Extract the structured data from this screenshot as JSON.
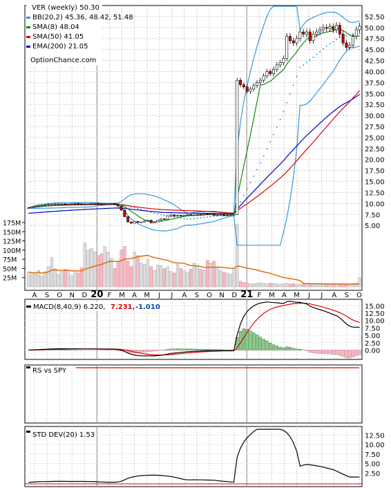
{
  "chart_data": [
    {
      "type": "candlestick",
      "ticker_label": "VER (weekly) 50.30",
      "watermark": "OptionChance.com",
      "legend_placement": "top-left",
      "legend": [
        {
          "label": "BB(20,2) 45.36, 48.42, 51.48",
          "color": "#3399dd"
        },
        {
          "label": "SMA(8) 48.04",
          "color": "#118811"
        },
        {
          "label": "SMA(50) 41.05",
          "color": "#dd0000"
        },
        {
          "label": "EMA(200) 21.05",
          "color": "#0000bb"
        }
      ],
      "ylim": [
        0,
        55
      ],
      "yticks": [
        "52.50",
        "50.00",
        "47.50",
        "45.00",
        "42.50",
        "40.00",
        "37.50",
        "35.00",
        "32.50",
        "30.00",
        "27.50",
        "25.00",
        "22.50",
        "20.00",
        "17.50",
        "15.00",
        "12.50",
        "10.00",
        "7.50",
        "5.00"
      ],
      "volume_ticks": [
        "175M",
        "150M",
        "125M",
        "100M",
        "75M",
        "50M",
        "25M"
      ],
      "x_month_labels": [
        "A",
        "S",
        "O",
        "N",
        "D",
        "20",
        "F",
        "M",
        "A",
        "M",
        "J",
        "J",
        "A",
        "S",
        "O",
        "N",
        "D",
        "21",
        "F",
        "M",
        "A",
        "M",
        "J",
        "J",
        "A",
        "S",
        "O"
      ],
      "price_weekly_close": [
        9.0,
        9.2,
        9.4,
        9.5,
        9.6,
        9.7,
        9.8,
        9.8,
        9.9,
        9.9,
        9.9,
        9.8,
        9.8,
        9.9,
        10.0,
        9.9,
        9.8,
        9.9,
        9.9,
        10.0,
        10.0,
        9.9,
        9.8,
        9.9,
        9.9,
        10.0,
        9.8,
        9.4,
        8.5,
        7.0,
        5.8,
        5.5,
        5.9,
        5.7,
        5.8,
        6.0,
        6.2,
        5.6,
        5.8,
        6.2,
        6.5,
        6.4,
        7.2,
        7.4,
        7.1,
        7.3,
        7.2,
        7.3,
        7.5,
        7.3,
        7.4,
        7.5,
        7.4,
        7.6,
        7.5,
        7.6,
        7.3,
        7.4,
        7.5,
        7.2,
        7.3,
        7.4,
        7.5,
        38.0,
        37.0,
        36.5,
        35.5,
        36.0,
        36.8,
        37.5,
        38.0,
        39.0,
        40.0,
        39.5,
        40.5,
        41.5,
        42.0,
        43.0,
        48.0,
        47.0,
        46.5,
        47.5,
        49.0,
        48.5,
        49.0,
        47.0,
        48.5,
        49.0,
        49.5,
        50.0,
        49.8,
        50.2,
        49.5,
        50.5,
        48.5,
        46.5,
        45.5,
        46.0,
        48.0,
        49.5,
        50.3
      ],
      "volume_millions": [
        40,
        38,
        35,
        45,
        30,
        42,
        55,
        80,
        50,
        35,
        42,
        48,
        45,
        30,
        40,
        38,
        52,
        120,
        100,
        105,
        95,
        85,
        90,
        110,
        95,
        78,
        50,
        70,
        100,
        110,
        70,
        55,
        95,
        85,
        65,
        62,
        75,
        55,
        45,
        60,
        58,
        50,
        55,
        42,
        38,
        62,
        50,
        45,
        40,
        48,
        65,
        55,
        48,
        45,
        72,
        65,
        70,
        55,
        45,
        40,
        38,
        35,
        50,
        170,
        15,
        12,
        10,
        8,
        9,
        10,
        11,
        9,
        8,
        10,
        9,
        8,
        7,
        9,
        10,
        8,
        9,
        7,
        6,
        8,
        9,
        7,
        6,
        8,
        9,
        7,
        8,
        6,
        7,
        9,
        8,
        7,
        6,
        8,
        9,
        10,
        25
      ]
    },
    {
      "type": "line",
      "name": "MACD",
      "legend": [
        {
          "label": "MACD(8,40,9) 6.220,",
          "color": "#000000"
        },
        {
          "label": "7.231,",
          "color": "#dd0000"
        },
        {
          "label": "-1.010",
          "color": "#1144aa"
        }
      ],
      "ylim": [
        -2,
        16
      ],
      "yticks": [
        "15.00",
        "12.50",
        "10.00",
        "7.50",
        "5.00",
        "2.50",
        "0.00"
      ],
      "macd_latest": 6.22,
      "signal_latest": 7.231,
      "hist_latest": -1.01
    },
    {
      "type": "line",
      "name": "RS vs SPY",
      "legend": [
        {
          "label": "RS vs SPY",
          "color": "#000000"
        }
      ]
    },
    {
      "type": "line",
      "name": "STD DEV",
      "legend": [
        {
          "label": "STD DEV(20) 1.53",
          "color": "#000000"
        }
      ],
      "ylim": [
        0,
        14
      ],
      "yticks": [
        "12.50",
        "10.00",
        "7.50",
        "5.00",
        "2.50"
      ],
      "latest": 1.53
    }
  ]
}
